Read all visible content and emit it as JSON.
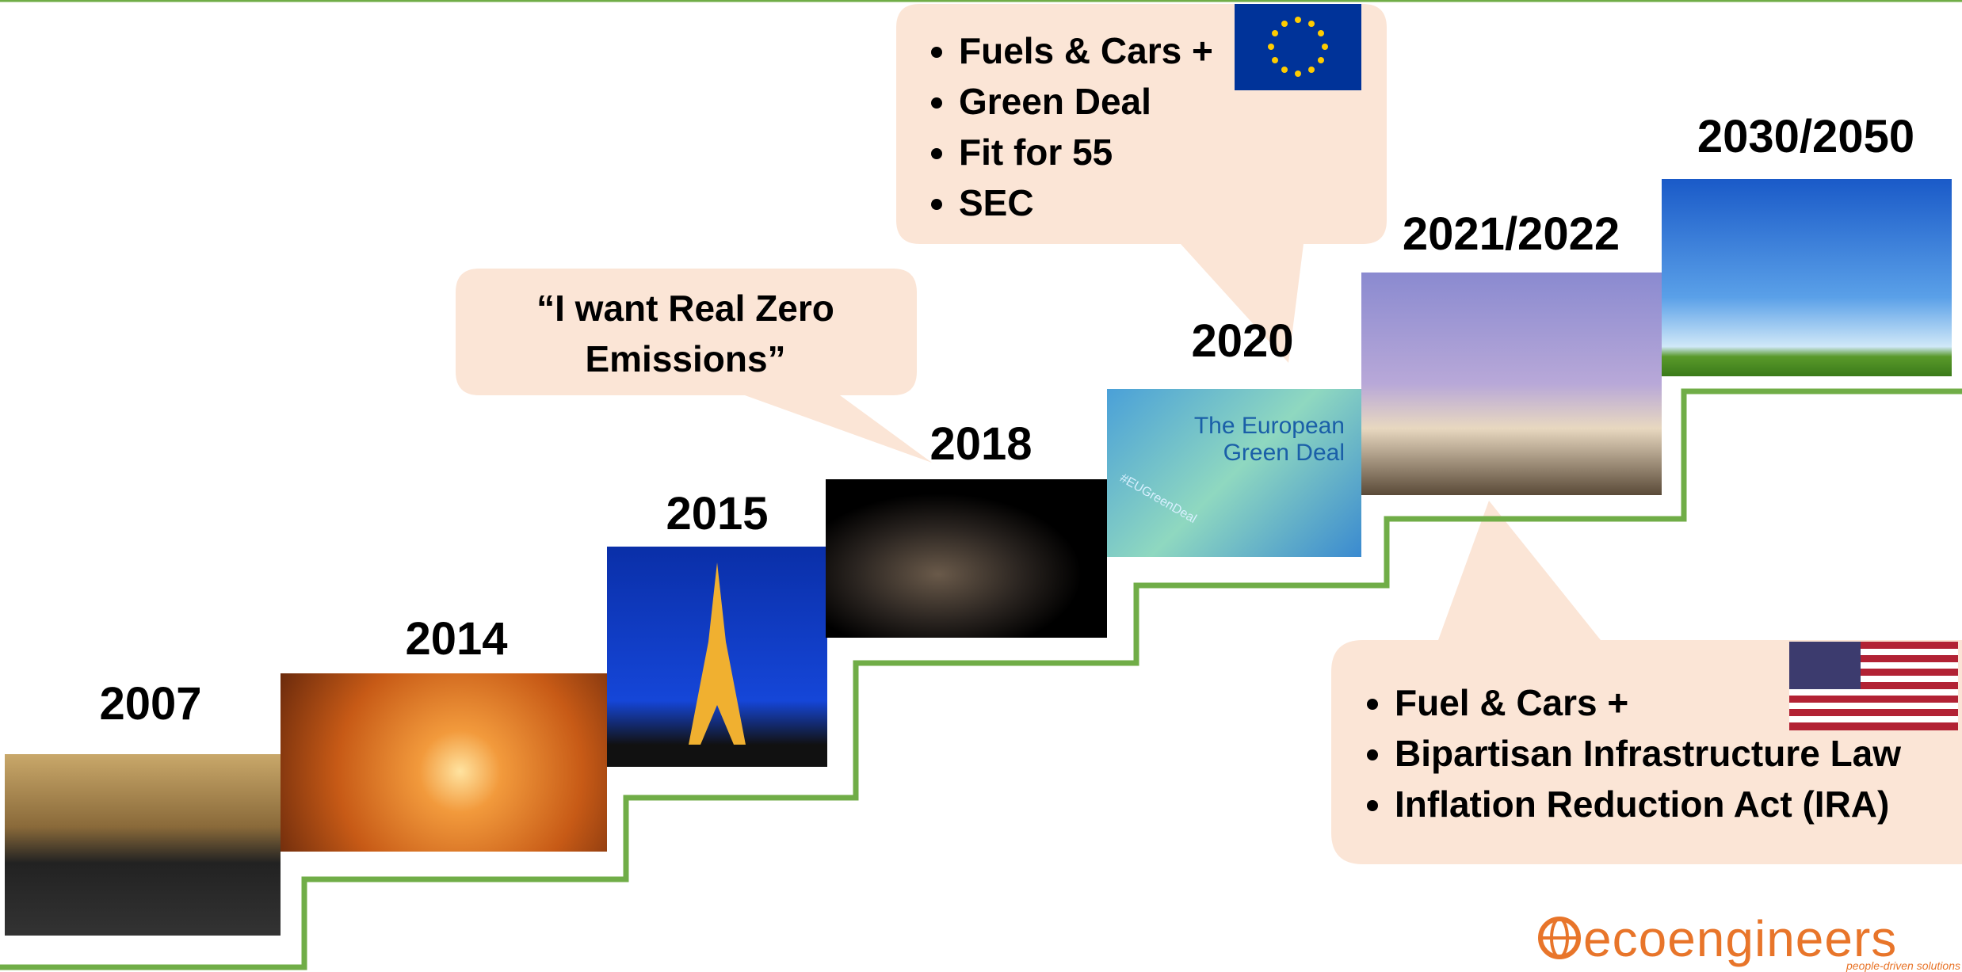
{
  "milestones": [
    {
      "label": "2007"
    },
    {
      "label": "2014"
    },
    {
      "label": "2015"
    },
    {
      "label": "2018"
    },
    {
      "label": "2020"
    },
    {
      "label": "2021/2022"
    },
    {
      "label": "2030/2050"
    }
  ],
  "quote_callout": {
    "text": "“I want Real Zero Emissions”"
  },
  "eu_callout": {
    "items": [
      "Fuels & Cars +",
      "Green Deal",
      "Fit for 55",
      "SEC"
    ]
  },
  "us_callout": {
    "items": [
      "Fuel & Cars +",
      "Bipartisan Infrastructure Law",
      "Inflation Reduction Act (IRA)"
    ]
  },
  "eu_image": {
    "title": "The European Green Deal",
    "hashtag": "#EUGreenDeal"
  },
  "logo": {
    "name": "ecoengineers",
    "tagline": "people-driven solutions"
  }
}
